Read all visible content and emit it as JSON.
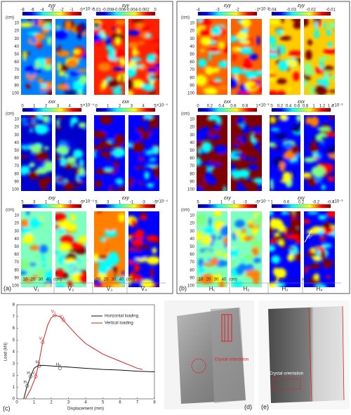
{
  "panel_a": {
    "label": "(a)",
    "samples": [
      "V₁",
      "V₂",
      "V₃",
      "V₄"
    ],
    "rows": [
      [
        {
          "name": "εyy",
          "ticks": [
            -8,
            -6,
            -4,
            -3,
            -2,
            -1,
            0
          ],
          "scale": "×10⁻⁴"
        },
        {
          "name": "εyy",
          "ticks": [
            -0.01,
            -0.008,
            -0.006,
            -0.004,
            -0.002,
            0
          ]
        }
      ],
      [
        {
          "name": "εxx",
          "ticks": [
            0,
            1,
            2,
            3,
            4,
            5
          ],
          "scale": "×10⁻⁴"
        },
        {
          "name": "εxx",
          "ticks": [
            0,
            1,
            2,
            3,
            4,
            5
          ],
          "scale": "×10⁻⁴"
        }
      ],
      [
        {
          "name": "εxy",
          "ticks": [
            5,
            3,
            1,
            -1,
            -3,
            -5
          ],
          "scale": "×10⁻⁴"
        },
        {
          "name": "εxy",
          "ticks": [
            5,
            3,
            1,
            -1,
            -3,
            -5
          ],
          "scale": "×10⁻⁴"
        }
      ]
    ]
  },
  "panel_b": {
    "label": "(b)",
    "samples": [
      "H₁",
      "H₂",
      "H₃",
      "H₄"
    ],
    "rows": [
      [
        {
          "name": "εyy",
          "ticks": [
            -4,
            -3,
            -2,
            -1
          ],
          "scale": "×10⁻³"
        },
        {
          "name": "εyy",
          "ticks": [
            -0.04,
            -0.03,
            -0.02,
            -0.01
          ]
        }
      ],
      [
        {
          "name": "εxx",
          "ticks": [
            0,
            0.2,
            0.4,
            0.6,
            0.8,
            1
          ],
          "scale": "×10⁻³"
        },
        {
          "name": "εxx",
          "ticks": [
            0,
            0.2,
            0.4,
            0.6,
            0.8,
            1,
            1.2,
            1.4
          ],
          "scale": "×10⁻³"
        }
      ],
      [
        {
          "name": "εxy",
          "ticks": [
            5,
            3,
            1,
            -1,
            -3,
            -5
          ],
          "scale": "×10⁻⁴"
        },
        {
          "name": "εxy",
          "ticks": [
            1,
            0.6,
            0.2,
            -0.2,
            -0.4
          ],
          "scale": "×10⁻³"
        }
      ]
    ],
    "angle_labels": [
      "45°",
      "45°"
    ]
  },
  "depth_axis": {
    "unit": "(cm)",
    "ticks": [
      10,
      20,
      30,
      40,
      50,
      60,
      70,
      80,
      90,
      100
    ]
  },
  "width_axis": {
    "unit": "(cm)",
    "ticks": [
      10,
      20,
      30,
      40
    ]
  },
  "chart_data": {
    "type": "line",
    "label": "(c)",
    "x_label": "Displacement (mm)",
    "y_label": "Load (kN)",
    "xlim": [
      0,
      8
    ],
    "ylim": [
      0,
      8
    ],
    "xticks": [
      0,
      1,
      2,
      3,
      4,
      5,
      6,
      7,
      8
    ],
    "yticks": [
      0,
      1,
      2,
      3,
      4,
      5,
      6,
      7,
      8
    ],
    "series": [
      {
        "name": "Horizontal loading",
        "color": "#111111",
        "x": [
          0.4,
          0.6,
          0.8,
          1.0,
          1.2,
          1.5,
          2,
          3,
          4,
          5,
          6,
          7,
          8
        ],
        "values": [
          0,
          1.1,
          1.9,
          2.6,
          2.8,
          2.85,
          2.8,
          2.7,
          2.6,
          2.5,
          2.45,
          2.35,
          2.3
        ]
      },
      {
        "name": "Vertical loading",
        "color": "#e02020",
        "x": [
          0.5,
          0.8,
          1.1,
          1.3,
          1.5,
          1.8,
          2.0,
          2.2,
          2.5,
          2.7,
          3,
          3.5,
          4,
          5,
          6,
          7,
          7.3
        ],
        "values": [
          0,
          0.8,
          1.9,
          3.2,
          4.8,
          6.3,
          6.9,
          7.1,
          7.0,
          6.7,
          6.2,
          5.4,
          4.7,
          3.8,
          3.2,
          2.6,
          2.5
        ]
      }
    ],
    "annotations": [
      {
        "label": "H₁",
        "x": 0.6,
        "y": 1.1
      },
      {
        "label": "H₂",
        "x": 0.8,
        "y": 1.9
      },
      {
        "label": "H₃",
        "x": 1.3,
        "y": 2.8
      },
      {
        "label": "H₄",
        "x": 2.5,
        "y": 2.6
      },
      {
        "label": "V₁",
        "x": 1.1,
        "y": 1.9
      },
      {
        "label": "V₂",
        "x": 1.5,
        "y": 4.8
      },
      {
        "label": "V₃",
        "x": 2.2,
        "y": 7.1
      },
      {
        "label": "V₄",
        "x": 2.7,
        "y": 6.7
      }
    ]
  },
  "photo_d": {
    "label": "(d)",
    "annotation": "Crystal orientation"
  },
  "photo_e": {
    "label": "(e)",
    "annotation": "Crystal orientation"
  }
}
